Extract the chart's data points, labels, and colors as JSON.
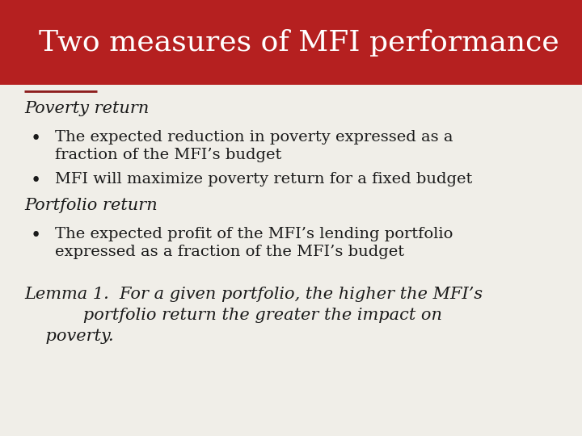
{
  "title": "Two measures of MFI performance",
  "title_bg_top": "#B52020",
  "title_bg_bot": "#8B1515",
  "title_text_color": "#FFFFFF",
  "body_bg_color": "#F0EEE8",
  "underline_color": "#8B1A1A",
  "heading1": "Poverty return",
  "bullet1a_line1": "The expected reduction in poverty expressed as a",
  "bullet1a_line2": "fraction of the MFI’s budget",
  "bullet1b": "MFI will maximize poverty return for a fixed budget",
  "heading2": "Portfolio return",
  "bullet2a_line1": "The expected profit of the MFI’s lending portfolio",
  "bullet2a_line2": "expressed as a fraction of the MFI’s budget",
  "lemma_line1": "Lemma 1.  For a given portfolio, the higher the MFI’s",
  "lemma_line2": "           portfolio return the greater the impact on",
  "lemma_line3": "    poverty.",
  "text_color": "#1a1a1a",
  "figsize": [
    7.2,
    5.4
  ],
  "dpi": 100
}
